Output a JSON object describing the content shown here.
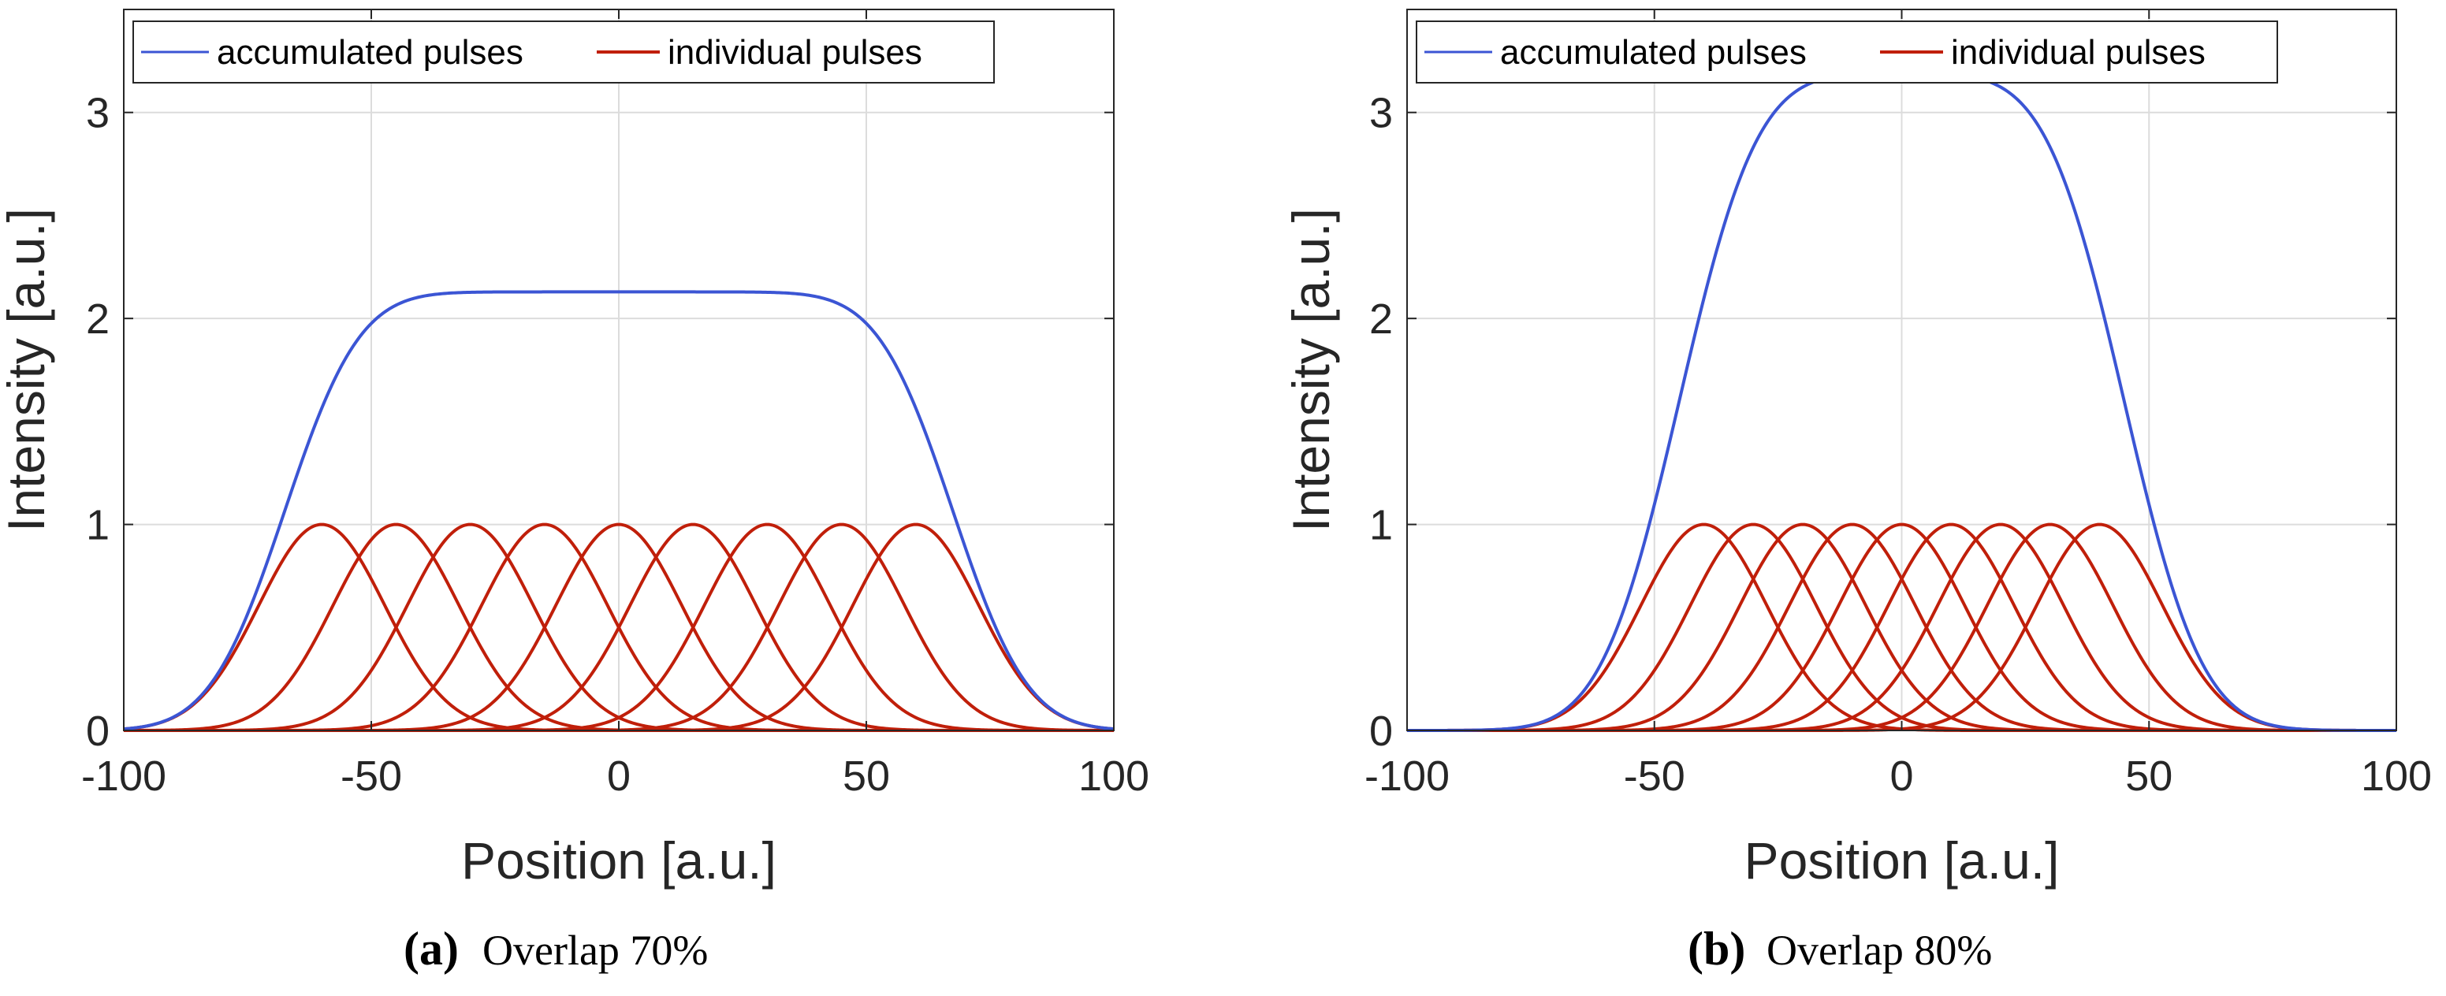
{
  "figure": {
    "panels": [
      {
        "caption_letter": "(a)",
        "caption_text": "Overlap 70%"
      },
      {
        "caption_letter": "(b)",
        "caption_text": "Overlap 80%"
      }
    ]
  },
  "colors": {
    "accumulated": "#3b55d4",
    "individual": "#c01f0a",
    "grid": "#dcdcdc",
    "axis": "#262626"
  },
  "chart_data": [
    {
      "type": "line",
      "title": "",
      "xlabel": "Position [a.u.]",
      "ylabel": "Intensity [a.u.]",
      "xlim": [
        -100,
        100
      ],
      "ylim": [
        0,
        3.5
      ],
      "xticks": [
        -100,
        -50,
        0,
        50,
        100
      ],
      "yticks": [
        0,
        1,
        2,
        3
      ],
      "grid": true,
      "legend": {
        "location": "top-left",
        "orientation": "horizontal",
        "entries": [
          "accumulated pulses",
          "individual pulses"
        ]
      },
      "pulse_model": "gaussian",
      "pulse_amplitude": 1,
      "pulse_fwhm": 30,
      "pulse_spacing": 15,
      "pulse_centers": [
        -60,
        -45,
        -30,
        -15,
        0,
        15,
        30,
        45,
        60
      ],
      "series": [
        {
          "name": "accumulated pulses",
          "plateau_value": 2.09,
          "description": "sum of individual pulses"
        },
        {
          "name": "individual pulses",
          "peak_value": 1.0
        }
      ]
    },
    {
      "type": "line",
      "title": "",
      "xlabel": "Position [a.u.]",
      "ylabel": "Intensity [a.u.]",
      "xlim": [
        -100,
        100
      ],
      "ylim": [
        0,
        3.5
      ],
      "xticks": [
        -100,
        -50,
        0,
        50,
        100
      ],
      "yticks": [
        0,
        1,
        2,
        3
      ],
      "grid": true,
      "legend": {
        "location": "top-left",
        "orientation": "horizontal",
        "entries": [
          "accumulated pulses",
          "individual pulses"
        ]
      },
      "pulse_model": "gaussian",
      "pulse_amplitude": 1,
      "pulse_fwhm": 30,
      "pulse_spacing": 10,
      "pulse_centers": [
        -40,
        -30,
        -20,
        -10,
        0,
        10,
        20,
        30,
        40
      ],
      "series": [
        {
          "name": "accumulated pulses",
          "plateau_value": 3.13,
          "description": "sum of individual pulses"
        },
        {
          "name": "individual pulses",
          "peak_value": 1.0
        }
      ]
    }
  ]
}
